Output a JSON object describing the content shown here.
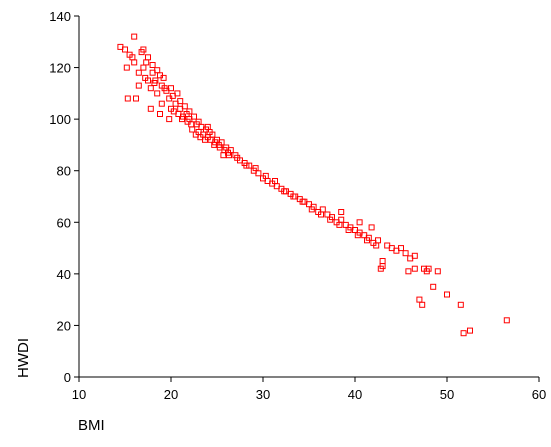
{
  "chart_data": {
    "type": "scatter",
    "xlabel": "BMI",
    "ylabel": "HWDI",
    "xlim": [
      10,
      60
    ],
    "ylim": [
      0,
      140
    ],
    "x_ticks": [
      "10",
      "20",
      "30",
      "40",
      "50",
      "60"
    ],
    "y_ticks": [
      "0",
      "20",
      "40",
      "60",
      "80",
      "100",
      "120",
      "140"
    ],
    "grid": false,
    "legend": "none",
    "marker": "open-square",
    "marker_color": "#ff0000",
    "series": [
      {
        "points": [
          [
            14.5,
            128
          ],
          [
            15,
            127
          ],
          [
            15.2,
            120
          ],
          [
            15.3,
            108
          ],
          [
            15.5,
            125
          ],
          [
            15.8,
            124
          ],
          [
            16,
            132
          ],
          [
            16,
            122
          ],
          [
            16.2,
            108
          ],
          [
            16.5,
            118
          ],
          [
            16.8,
            126
          ],
          [
            17,
            127
          ],
          [
            17,
            120
          ],
          [
            17.2,
            116
          ],
          [
            17.5,
            115
          ],
          [
            17.5,
            124
          ],
          [
            17.8,
            112
          ],
          [
            18,
            121
          ],
          [
            18,
            118
          ],
          [
            18.2,
            114
          ],
          [
            18.5,
            110
          ],
          [
            18.5,
            119
          ],
          [
            18.8,
            117
          ],
          [
            19,
            113
          ],
          [
            19,
            106
          ],
          [
            19.2,
            116
          ],
          [
            19.5,
            111
          ],
          [
            19.8,
            108
          ],
          [
            20,
            112
          ],
          [
            20,
            104
          ],
          [
            20.2,
            109
          ],
          [
            20.5,
            106
          ],
          [
            20.8,
            102
          ],
          [
            21,
            107
          ],
          [
            21,
            104
          ],
          [
            21.3,
            101
          ],
          [
            21.5,
            105
          ],
          [
            21.8,
            99
          ],
          [
            22,
            103
          ],
          [
            22,
            100
          ],
          [
            22.3,
            96
          ],
          [
            22.5,
            101
          ],
          [
            22.8,
            98
          ],
          [
            23,
            99
          ],
          [
            23,
            95
          ],
          [
            23.3,
            97
          ],
          [
            23.5,
            94
          ],
          [
            23.8,
            96
          ],
          [
            24,
            93
          ],
          [
            24,
            97
          ],
          [
            24.3,
            92
          ],
          [
            24.5,
            94
          ],
          [
            24.8,
            91
          ],
          [
            25,
            92
          ],
          [
            25.3,
            89
          ],
          [
            25.5,
            91
          ],
          [
            25.8,
            88
          ],
          [
            26,
            89
          ],
          [
            26.3,
            86
          ],
          [
            26.5,
            88
          ],
          [
            27,
            86
          ],
          [
            27.5,
            84
          ],
          [
            28,
            83
          ],
          [
            28.5,
            82
          ],
          [
            29,
            80
          ],
          [
            29.5,
            79
          ],
          [
            30,
            77
          ],
          [
            30.5,
            76
          ],
          [
            31,
            75
          ],
          [
            31.5,
            74
          ],
          [
            32,
            73
          ],
          [
            32.5,
            72
          ],
          [
            33,
            71
          ],
          [
            33.5,
            70
          ],
          [
            34,
            69
          ],
          [
            34.5,
            68
          ],
          [
            35,
            67
          ],
          [
            35.5,
            66
          ],
          [
            36,
            64
          ],
          [
            36.5,
            65
          ],
          [
            37,
            63
          ],
          [
            37.5,
            62
          ],
          [
            38,
            60
          ],
          [
            38.5,
            61
          ],
          [
            39,
            59
          ],
          [
            39.5,
            58
          ],
          [
            40,
            57
          ],
          [
            40.5,
            56
          ],
          [
            41,
            55
          ],
          [
            41.5,
            54
          ],
          [
            42,
            52
          ],
          [
            42.5,
            53
          ],
          [
            42.8,
            42
          ],
          [
            43,
            45
          ],
          [
            43,
            43
          ],
          [
            43.5,
            51
          ],
          [
            44,
            50
          ],
          [
            44.5,
            49
          ],
          [
            45,
            50
          ],
          [
            45.5,
            48
          ],
          [
            45.8,
            41
          ],
          [
            46,
            46
          ],
          [
            46.5,
            42
          ],
          [
            46.5,
            47
          ],
          [
            47,
            30
          ],
          [
            47.3,
            28
          ],
          [
            47.5,
            42
          ],
          [
            47.8,
            41
          ],
          [
            48,
            42
          ],
          [
            48.5,
            35
          ],
          [
            49,
            41
          ],
          [
            50,
            32
          ],
          [
            51.5,
            28
          ],
          [
            51.8,
            17
          ],
          [
            52.5,
            18
          ],
          [
            56.5,
            22
          ],
          [
            17.3,
            122
          ],
          [
            18.3,
            115
          ],
          [
            19.3,
            112
          ],
          [
            20.3,
            103
          ],
          [
            21.2,
            100
          ],
          [
            22.2,
            98
          ],
          [
            23.2,
            93
          ],
          [
            24.2,
            95
          ],
          [
            25.2,
            90
          ],
          [
            26.2,
            87
          ],
          [
            16.5,
            113
          ],
          [
            17.8,
            104
          ],
          [
            18.8,
            102
          ],
          [
            19.8,
            100
          ],
          [
            20.7,
            110
          ],
          [
            21.7,
            102
          ],
          [
            22.7,
            94
          ],
          [
            23.7,
            92
          ],
          [
            24.7,
            90
          ],
          [
            25.7,
            86
          ],
          [
            27.2,
            85
          ],
          [
            28.2,
            82
          ],
          [
            29.2,
            81
          ],
          [
            30.3,
            78
          ],
          [
            31.3,
            76
          ],
          [
            32.3,
            72
          ],
          [
            33.3,
            70
          ],
          [
            34.3,
            68
          ],
          [
            35.3,
            65
          ],
          [
            36.3,
            63
          ],
          [
            37.3,
            61
          ],
          [
            38.3,
            59
          ],
          [
            39.3,
            57
          ],
          [
            40.3,
            55
          ],
          [
            41.3,
            53
          ],
          [
            42.3,
            51
          ],
          [
            38.5,
            64
          ],
          [
            40.5,
            60
          ],
          [
            41.8,
            58
          ]
        ]
      }
    ]
  }
}
